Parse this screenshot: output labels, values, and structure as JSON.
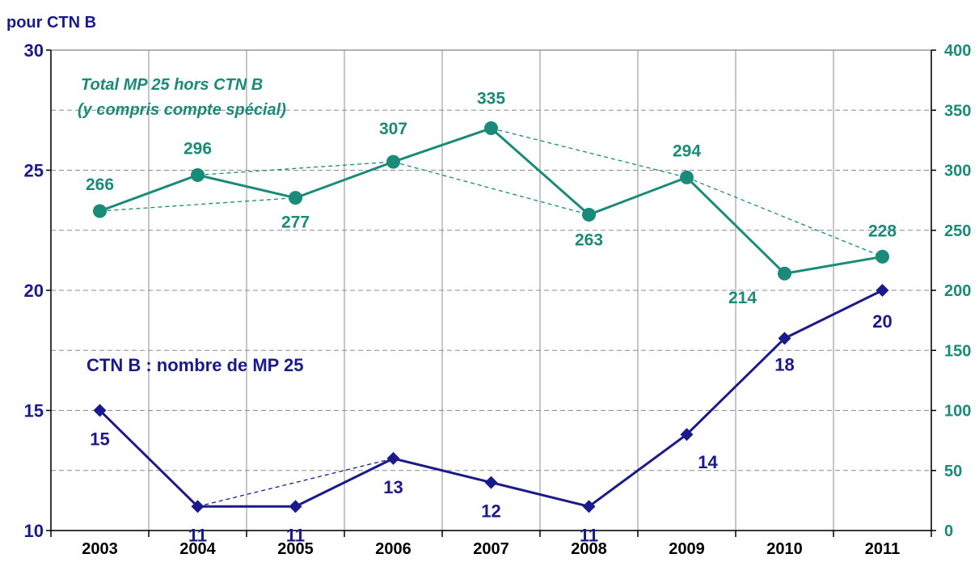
{
  "chart_data": {
    "type": "line",
    "left_axis_title": "pour CTN B",
    "categories": [
      "2003",
      "2004",
      "2005",
      "2006",
      "2007",
      "2008",
      "2009",
      "2010",
      "2011"
    ],
    "left_axis": {
      "range": [
        10,
        30
      ],
      "ticks": [
        "10",
        "15",
        "20",
        "25",
        "30"
      ],
      "color": "#1a1a8c"
    },
    "right_axis": {
      "range": [
        0,
        400
      ],
      "ticks": [
        "0",
        "50",
        "100",
        "150",
        "200",
        "250",
        "300",
        "350",
        "400"
      ],
      "color": "#1a8a7a"
    },
    "grid": true,
    "series": [
      {
        "name": "Total MP 25 hors CTN B (y compris compte spécial)",
        "name_line1": "Total MP 25 hors CTN B",
        "name_line2": "(y compris compte spécial)",
        "axis": "right",
        "color": "#1a8a7a",
        "marker": "circle",
        "values": [
          266,
          296,
          277,
          307,
          335,
          263,
          294,
          214,
          228
        ],
        "labels": [
          "266",
          "296",
          "277",
          "307",
          "335",
          "263",
          "294",
          "214",
          "228"
        ]
      },
      {
        "name": "CTN B : nombre de MP 25",
        "axis": "left",
        "color": "#1a1a8c",
        "marker": "diamond",
        "values": [
          15,
          11,
          11,
          13,
          12,
          11,
          14,
          18,
          20
        ],
        "labels": [
          "15",
          "11",
          "11",
          "13",
          "12",
          "11",
          "14",
          "18",
          "20"
        ]
      }
    ],
    "trend_lines": [
      {
        "series": 0,
        "from": 0,
        "to": 2
      },
      {
        "series": 0,
        "from": 1,
        "to": 3
      },
      {
        "series": 0,
        "from": 3,
        "to": 5
      },
      {
        "series": 0,
        "from": 4,
        "to": 6
      },
      {
        "series": 0,
        "from": 6,
        "to": 8
      },
      {
        "series": 1,
        "from": 1,
        "to": 3
      }
    ]
  }
}
